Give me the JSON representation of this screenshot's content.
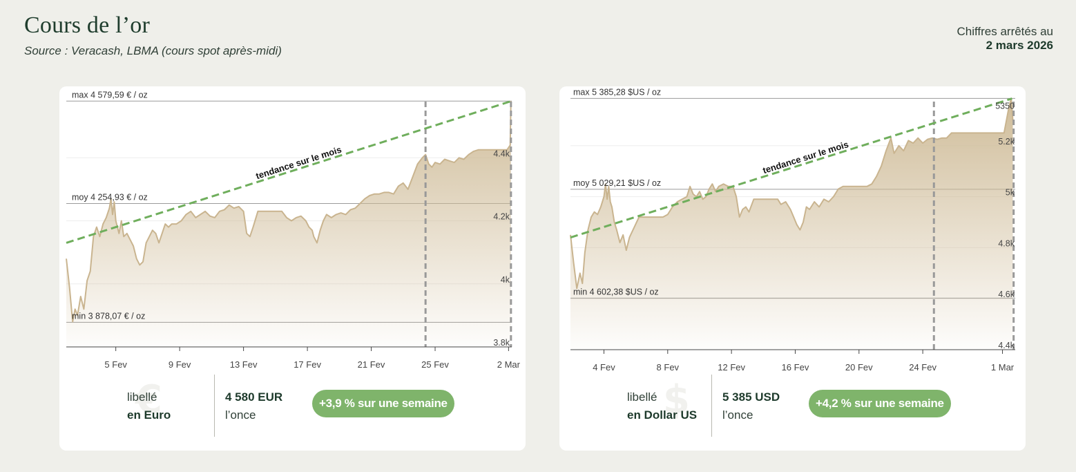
{
  "header": {
    "title": "Cours de l’or",
    "source": "Source : Veracash, LBMA (cours spot après-midi)",
    "date_label": "Chiffres arrêtés au",
    "date_value": "2 mars 2026"
  },
  "colors": {
    "background": "#efefea",
    "area_stroke": "#c9b48f",
    "area_fill": "#cdb994",
    "trend": "#6fae5c",
    "pill": "#7fb46b",
    "title": "#1f3d2d"
  },
  "chart_data": [
    {
      "type": "area",
      "currency": "EUR",
      "ylim": [
        3800,
        4600
      ],
      "y_ticks": [
        {
          "v": 3800,
          "label": "3.8k"
        },
        {
          "v": 4000,
          "label": "4k"
        },
        {
          "v": 4200,
          "label": "4.2k"
        },
        {
          "v": 4400,
          "label": "4.4k"
        }
      ],
      "x_ticks": [
        "5 Fev",
        "9 Fev",
        "13 Fev",
        "17 Fev",
        "21 Fev",
        "25 Fev",
        "2 Mar"
      ],
      "x_tick_days": [
        3.8,
        7.8,
        11.8,
        15.8,
        19.8,
        23.8,
        28.4
      ],
      "x_range_days": [
        0.7,
        28.6
      ],
      "reference_lines": [
        {
          "value": 4579.59,
          "label": "max 4 579,59 € / oz"
        },
        {
          "value": 4254.93,
          "label": "moy 4 254,93 € / oz"
        },
        {
          "value": 3878.07,
          "label": "min 3 878,07 € / oz"
        }
      ],
      "trend": {
        "label": "tendance sur le mois",
        "from": [
          0.7,
          4130
        ],
        "to": [
          28.6,
          4580
        ]
      },
      "weekly_window_days": [
        23.2,
        28.55
      ],
      "series": [
        {
          "points": [
            [
              0.7,
              4080
            ],
            [
              0.9,
              3990
            ],
            [
              1.1,
              3880
            ],
            [
              1.25,
              3920
            ],
            [
              1.4,
              3900
            ],
            [
              1.6,
              3960
            ],
            [
              1.8,
              3920
            ],
            [
              2.0,
              4010
            ],
            [
              2.2,
              4040
            ],
            [
              2.4,
              4150
            ],
            [
              2.6,
              4180
            ],
            [
              2.8,
              4150
            ],
            [
              3.0,
              4190
            ],
            [
              3.2,
              4210
            ],
            [
              3.4,
              4240
            ],
            [
              3.5,
              4270
            ],
            [
              3.6,
              4220
            ],
            [
              3.7,
              4260
            ],
            [
              3.8,
              4200
            ],
            [
              3.9,
              4180
            ],
            [
              4.0,
              4160
            ],
            [
              4.15,
              4200
            ],
            [
              4.3,
              4150
            ],
            [
              4.5,
              4160
            ],
            [
              4.7,
              4140
            ],
            [
              4.9,
              4120
            ],
            [
              5.1,
              4080
            ],
            [
              5.3,
              4060
            ],
            [
              5.5,
              4070
            ],
            [
              5.7,
              4130
            ],
            [
              5.9,
              4150
            ],
            [
              6.1,
              4170
            ],
            [
              6.3,
              4160
            ],
            [
              6.5,
              4130
            ],
            [
              6.7,
              4160
            ],
            [
              6.9,
              4190
            ],
            [
              7.1,
              4180
            ],
            [
              7.3,
              4190
            ],
            [
              7.6,
              4190
            ],
            [
              7.9,
              4200
            ],
            [
              8.2,
              4220
            ],
            [
              8.5,
              4230
            ],
            [
              8.8,
              4210
            ],
            [
              9.1,
              4220
            ],
            [
              9.4,
              4230
            ],
            [
              9.7,
              4215
            ],
            [
              10.0,
              4210
            ],
            [
              10.3,
              4230
            ],
            [
              10.6,
              4235
            ],
            [
              10.9,
              4250
            ],
            [
              11.2,
              4240
            ],
            [
              11.5,
              4245
            ],
            [
              11.8,
              4230
            ],
            [
              12.0,
              4160
            ],
            [
              12.2,
              4150
            ],
            [
              12.4,
              4180
            ],
            [
              12.7,
              4230
            ],
            [
              13.0,
              4230
            ],
            [
              13.3,
              4230
            ],
            [
              13.6,
              4230
            ],
            [
              13.9,
              4230
            ],
            [
              14.2,
              4230
            ],
            [
              14.5,
              4210
            ],
            [
              14.8,
              4200
            ],
            [
              15.1,
              4210
            ],
            [
              15.4,
              4215
            ],
            [
              15.7,
              4200
            ],
            [
              15.9,
              4180
            ],
            [
              16.1,
              4170
            ],
            [
              16.2,
              4150
            ],
            [
              16.4,
              4130
            ],
            [
              16.6,
              4170
            ],
            [
              16.8,
              4200
            ],
            [
              17.0,
              4220
            ],
            [
              17.3,
              4210
            ],
            [
              17.6,
              4220
            ],
            [
              17.9,
              4225
            ],
            [
              18.2,
              4220
            ],
            [
              18.5,
              4235
            ],
            [
              18.8,
              4240
            ],
            [
              19.1,
              4255
            ],
            [
              19.4,
              4270
            ],
            [
              19.7,
              4280
            ],
            [
              20.0,
              4285
            ],
            [
              20.3,
              4285
            ],
            [
              20.6,
              4290
            ],
            [
              20.9,
              4290
            ],
            [
              21.2,
              4285
            ],
            [
              21.5,
              4310
            ],
            [
              21.8,
              4320
            ],
            [
              22.1,
              4300
            ],
            [
              22.4,
              4340
            ],
            [
              22.7,
              4380
            ],
            [
              23.0,
              4400
            ],
            [
              23.2,
              4410
            ],
            [
              23.4,
              4380
            ],
            [
              23.6,
              4370
            ],
            [
              23.8,
              4385
            ],
            [
              24.1,
              4380
            ],
            [
              24.4,
              4395
            ],
            [
              24.7,
              4390
            ],
            [
              25.0,
              4385
            ],
            [
              25.3,
              4400
            ],
            [
              25.6,
              4395
            ],
            [
              25.9,
              4410
            ],
            [
              26.2,
              4420
            ],
            [
              26.5,
              4425
            ],
            [
              26.8,
              4425
            ],
            [
              27.1,
              4425
            ],
            [
              27.4,
              4425
            ],
            [
              27.7,
              4425
            ],
            [
              28.0,
              4425
            ],
            [
              28.3,
              4425
            ],
            [
              28.5,
              4440
            ],
            [
              28.55,
              4580
            ]
          ]
        }
      ]
    },
    {
      "type": "area",
      "currency": "USD",
      "ylim": [
        4400,
        5400
      ],
      "y_ticks": [
        {
          "v": 4400,
          "label": "4.4k"
        },
        {
          "v": 4600,
          "label": "4.6k"
        },
        {
          "v": 4800,
          "label": "4.8k"
        },
        {
          "v": 5000,
          "label": "5k"
        },
        {
          "v": 5200,
          "label": "5.2k"
        }
      ],
      "x_ticks": [
        "4 Fev",
        "8 Fev",
        "12 Fev",
        "16 Fev",
        "20 Fev",
        "24 Fev",
        "1 Mar"
      ],
      "x_tick_days": [
        2.8,
        6.8,
        10.8,
        14.8,
        18.8,
        22.8,
        27.8
      ],
      "x_range_days": [
        0.7,
        28.6
      ],
      "reference_lines": [
        {
          "value": 5385.28,
          "label": "max 5 385,28 $US / oz"
        },
        {
          "value": 5029.21,
          "label": "moy 5 029,21 $US / oz"
        },
        {
          "value": 4602.38,
          "label": "min 4 602,38 $US / oz"
        }
      ],
      "annotations": [
        {
          "value": 5350,
          "label": "5350"
        }
      ],
      "trend": {
        "label": "tendance sur le mois",
        "from": [
          0.7,
          4840
        ],
        "to": [
          28.4,
          5385
        ]
      },
      "weekly_window_days": [
        23.5,
        28.5
      ],
      "series": [
        {
          "points": [
            [
              0.7,
              4850
            ],
            [
              0.9,
              4740
            ],
            [
              1.1,
              4640
            ],
            [
              1.3,
              4700
            ],
            [
              1.45,
              4660
            ],
            [
              1.6,
              4780
            ],
            [
              1.8,
              4870
            ],
            [
              2.0,
              4920
            ],
            [
              2.2,
              4940
            ],
            [
              2.4,
              4930
            ],
            [
              2.6,
              4960
            ],
            [
              2.8,
              5000
            ],
            [
              2.9,
              5050
            ],
            [
              3.0,
              4990
            ],
            [
              3.1,
              5040
            ],
            [
              3.2,
              4980
            ],
            [
              3.3,
              4960
            ],
            [
              3.45,
              4900
            ],
            [
              3.6,
              4870
            ],
            [
              3.8,
              4820
            ],
            [
              4.0,
              4850
            ],
            [
              4.2,
              4790
            ],
            [
              4.4,
              4840
            ],
            [
              4.7,
              4880
            ],
            [
              5.0,
              4920
            ],
            [
              5.3,
              4920
            ],
            [
              5.6,
              4920
            ],
            [
              5.9,
              4920
            ],
            [
              6.2,
              4920
            ],
            [
              6.5,
              4920
            ],
            [
              6.8,
              4930
            ],
            [
              7.1,
              4960
            ],
            [
              7.4,
              4980
            ],
            [
              7.7,
              4990
            ],
            [
              8.0,
              5000
            ],
            [
              8.2,
              5040
            ],
            [
              8.4,
              5010
            ],
            [
              8.6,
              5000
            ],
            [
              8.8,
              5020
            ],
            [
              9.0,
              4990
            ],
            [
              9.2,
              5000
            ],
            [
              9.4,
              5030
            ],
            [
              9.6,
              5050
            ],
            [
              9.8,
              5020
            ],
            [
              10.0,
              5040
            ],
            [
              10.3,
              5050
            ],
            [
              10.6,
              5040
            ],
            [
              10.9,
              5040
            ],
            [
              11.1,
              5000
            ],
            [
              11.3,
              4920
            ],
            [
              11.5,
              4950
            ],
            [
              11.7,
              4960
            ],
            [
              11.9,
              4940
            ],
            [
              12.2,
              4990
            ],
            [
              12.5,
              4990
            ],
            [
              12.8,
              4990
            ],
            [
              13.1,
              4990
            ],
            [
              13.4,
              4990
            ],
            [
              13.7,
              4990
            ],
            [
              13.9,
              4970
            ],
            [
              14.2,
              4980
            ],
            [
              14.5,
              4950
            ],
            [
              14.7,
              4920
            ],
            [
              14.9,
              4890
            ],
            [
              15.1,
              4870
            ],
            [
              15.3,
              4900
            ],
            [
              15.5,
              4960
            ],
            [
              15.7,
              4950
            ],
            [
              16.0,
              4980
            ],
            [
              16.3,
              4960
            ],
            [
              16.6,
              4990
            ],
            [
              16.9,
              4980
            ],
            [
              17.2,
              5000
            ],
            [
              17.5,
              5030
            ],
            [
              17.8,
              5040
            ],
            [
              18.1,
              5040
            ],
            [
              18.4,
              5040
            ],
            [
              18.7,
              5040
            ],
            [
              19.0,
              5040
            ],
            [
              19.3,
              5040
            ],
            [
              19.6,
              5050
            ],
            [
              19.9,
              5080
            ],
            [
              20.2,
              5120
            ],
            [
              20.5,
              5180
            ],
            [
              20.8,
              5230
            ],
            [
              21.0,
              5170
            ],
            [
              21.3,
              5200
            ],
            [
              21.6,
              5180
            ],
            [
              21.9,
              5220
            ],
            [
              22.2,
              5210
            ],
            [
              22.5,
              5230
            ],
            [
              22.8,
              5210
            ],
            [
              23.1,
              5225
            ],
            [
              23.4,
              5230
            ],
            [
              23.7,
              5225
            ],
            [
              24.0,
              5230
            ],
            [
              24.3,
              5230
            ],
            [
              24.6,
              5250
            ],
            [
              24.9,
              5250
            ],
            [
              25.2,
              5250
            ],
            [
              25.5,
              5250
            ],
            [
              25.8,
              5250
            ],
            [
              26.1,
              5250
            ],
            [
              26.4,
              5250
            ],
            [
              26.7,
              5250
            ],
            [
              27.0,
              5250
            ],
            [
              27.3,
              5250
            ],
            [
              27.6,
              5250
            ],
            [
              27.9,
              5250
            ],
            [
              28.2,
              5350
            ],
            [
              28.35,
              5385
            ],
            [
              28.45,
              5300
            ]
          ]
        }
      ]
    }
  ],
  "cards": [
    {
      "currency_symbol": "€",
      "libelle_line1": "libellé",
      "libelle_line2": "en Euro",
      "price": "4 580 EUR",
      "price_unit": "l’once",
      "change": "+3,9 % sur une semaine"
    },
    {
      "currency_symbol": "$",
      "libelle_line1": "libellé",
      "libelle_line2": "en Dollar US",
      "price": "5 385 USD",
      "price_unit": "l’once",
      "change": "+4,2 % sur une semaine"
    }
  ]
}
